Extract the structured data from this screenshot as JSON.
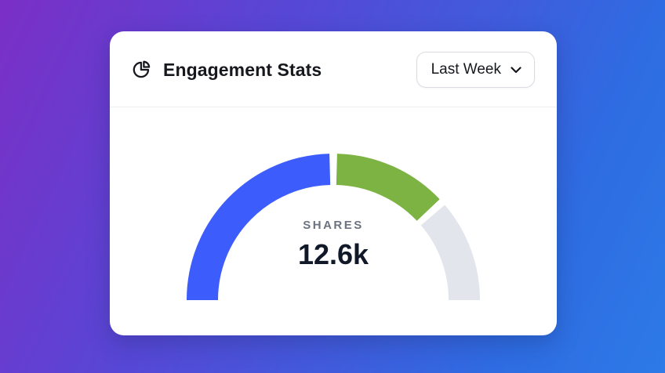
{
  "card": {
    "title": "Engagement Stats",
    "title_icon": "pie-chart-icon",
    "dropdown": {
      "selected": "Last Week",
      "chevron_icon": "chevron-down-icon"
    }
  },
  "chart_data": {
    "type": "pie",
    "subtype": "half-donut-gauge",
    "title": "Engagement Stats",
    "period": "Last Week",
    "center_label": "SHARES",
    "center_value": "12.6k",
    "total_angle_degrees": 180,
    "gap_degrees": 3,
    "segments": [
      {
        "name": "shares-blue",
        "angle": 90,
        "color": "#3d5cfc"
      },
      {
        "name": "shares-green",
        "angle": 48,
        "color": "#7cb342"
      },
      {
        "name": "remainder-gray",
        "angle": 42,
        "color": "#e2e5eb"
      }
    ]
  },
  "colors": {
    "background_gradient_from": "#7b2fc6",
    "background_gradient_to": "#2d7ae8",
    "card_background": "#ffffff",
    "title_text": "#16181d",
    "label_text": "#6b7280",
    "value_text": "#111827"
  }
}
